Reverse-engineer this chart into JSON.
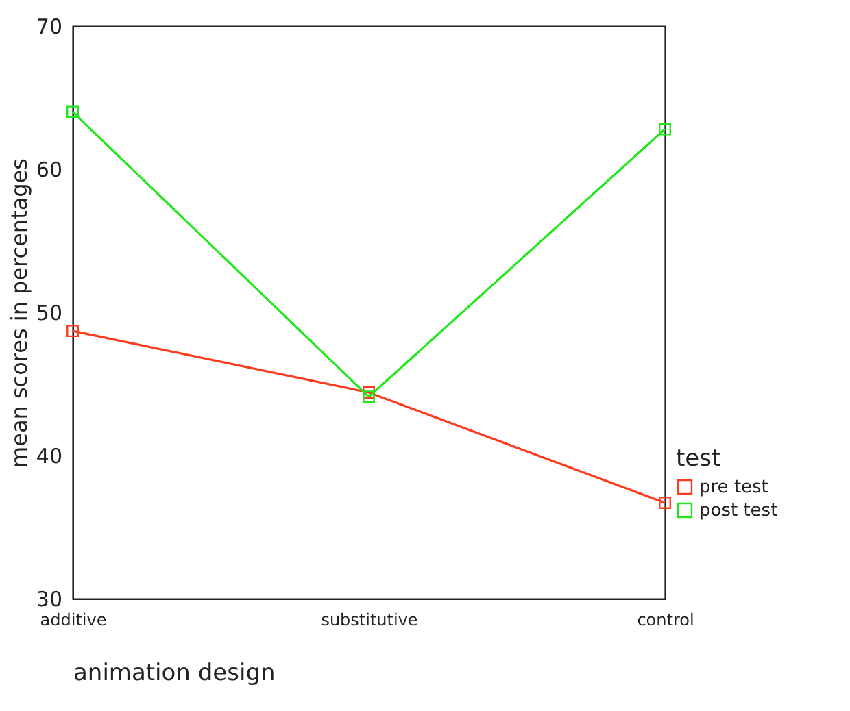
{
  "chart_data": {
    "type": "line",
    "xlabel": "animation design",
    "ylabel": "mean scores in percentages",
    "legend_title": "test",
    "categories": [
      "additive",
      "substitutive",
      "control"
    ],
    "series": [
      {
        "name": "pre test",
        "color": "#ff3b1f",
        "values": [
          48.7,
          44.4,
          36.7
        ]
      },
      {
        "name": "post test",
        "color": "#22e61c",
        "values": [
          64.0,
          44.1,
          62.8
        ]
      }
    ],
    "ylim": [
      30,
      70
    ],
    "yticks": [
      30,
      40,
      50,
      60,
      70
    ],
    "grid": false,
    "legend": "bottom right",
    "marker": "square",
    "line_style": "solid"
  }
}
